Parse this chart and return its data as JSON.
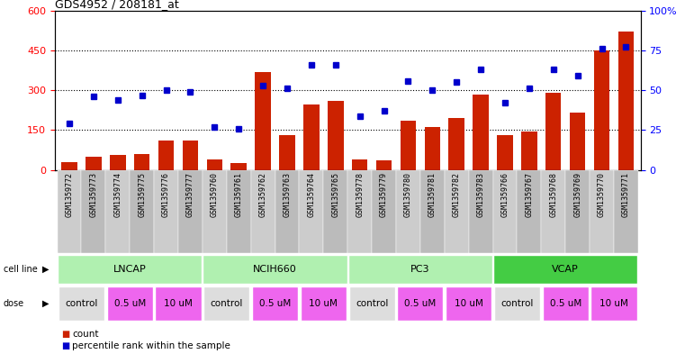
{
  "title": "GDS4952 / 208181_at",
  "samples": [
    "GSM1359772",
    "GSM1359773",
    "GSM1359774",
    "GSM1359775",
    "GSM1359776",
    "GSM1359777",
    "GSM1359760",
    "GSM1359761",
    "GSM1359762",
    "GSM1359763",
    "GSM1359764",
    "GSM1359765",
    "GSM1359778",
    "GSM1359779",
    "GSM1359780",
    "GSM1359781",
    "GSM1359782",
    "GSM1359783",
    "GSM1359766",
    "GSM1359767",
    "GSM1359768",
    "GSM1359769",
    "GSM1359770",
    "GSM1359771"
  ],
  "counts": [
    30,
    50,
    55,
    60,
    110,
    110,
    40,
    25,
    370,
    130,
    245,
    260,
    40,
    35,
    185,
    160,
    195,
    285,
    130,
    145,
    290,
    215,
    450,
    520
  ],
  "percentiles": [
    29,
    46,
    44,
    47,
    50,
    49,
    27,
    26,
    53,
    51,
    66,
    66,
    34,
    37,
    56,
    50,
    55,
    63,
    42,
    51,
    63,
    59,
    76,
    77
  ],
  "cell_lines": [
    {
      "name": "LNCAP",
      "start": 0,
      "end": 6,
      "color": "#b0f0b0"
    },
    {
      "name": "NCIH660",
      "start": 6,
      "end": 12,
      "color": "#b0f0b0"
    },
    {
      "name": "PC3",
      "start": 12,
      "end": 18,
      "color": "#b0f0b0"
    },
    {
      "name": "VCAP",
      "start": 18,
      "end": 24,
      "color": "#44cc44"
    }
  ],
  "dose_groups": [
    {
      "label": "control",
      "start": 0,
      "end": 2,
      "color": "#dddddd"
    },
    {
      "label": "0.5 uM",
      "start": 2,
      "end": 4,
      "color": "#ee66ee"
    },
    {
      "label": "10 uM",
      "start": 4,
      "end": 6,
      "color": "#ee66ee"
    },
    {
      "label": "control",
      "start": 6,
      "end": 8,
      "color": "#dddddd"
    },
    {
      "label": "0.5 uM",
      "start": 8,
      "end": 10,
      "color": "#ee66ee"
    },
    {
      "label": "10 uM",
      "start": 10,
      "end": 12,
      "color": "#ee66ee"
    },
    {
      "label": "control",
      "start": 12,
      "end": 14,
      "color": "#dddddd"
    },
    {
      "label": "0.5 uM",
      "start": 14,
      "end": 16,
      "color": "#ee66ee"
    },
    {
      "label": "10 uM",
      "start": 16,
      "end": 18,
      "color": "#ee66ee"
    },
    {
      "label": "control",
      "start": 18,
      "end": 20,
      "color": "#dddddd"
    },
    {
      "label": "0.5 uM",
      "start": 20,
      "end": 22,
      "color": "#ee66ee"
    },
    {
      "label": "10 uM",
      "start": 22,
      "end": 24,
      "color": "#ee66ee"
    }
  ],
  "bar_color": "#cc2200",
  "dot_color": "#0000cc",
  "left_ylim": [
    0,
    600
  ],
  "right_ylim": [
    0,
    100
  ],
  "left_yticks": [
    0,
    150,
    300,
    450,
    600
  ],
  "right_yticks": [
    0,
    25,
    50,
    75,
    100
  ],
  "right_yticklabels": [
    "0",
    "25",
    "50",
    "75",
    "100%"
  ],
  "grid_values": [
    150,
    300,
    450
  ],
  "background_color": "#ffffff",
  "tick_bg_color": "#cccccc",
  "legend_count_color": "#cc2200",
  "legend_dot_color": "#0000cc"
}
